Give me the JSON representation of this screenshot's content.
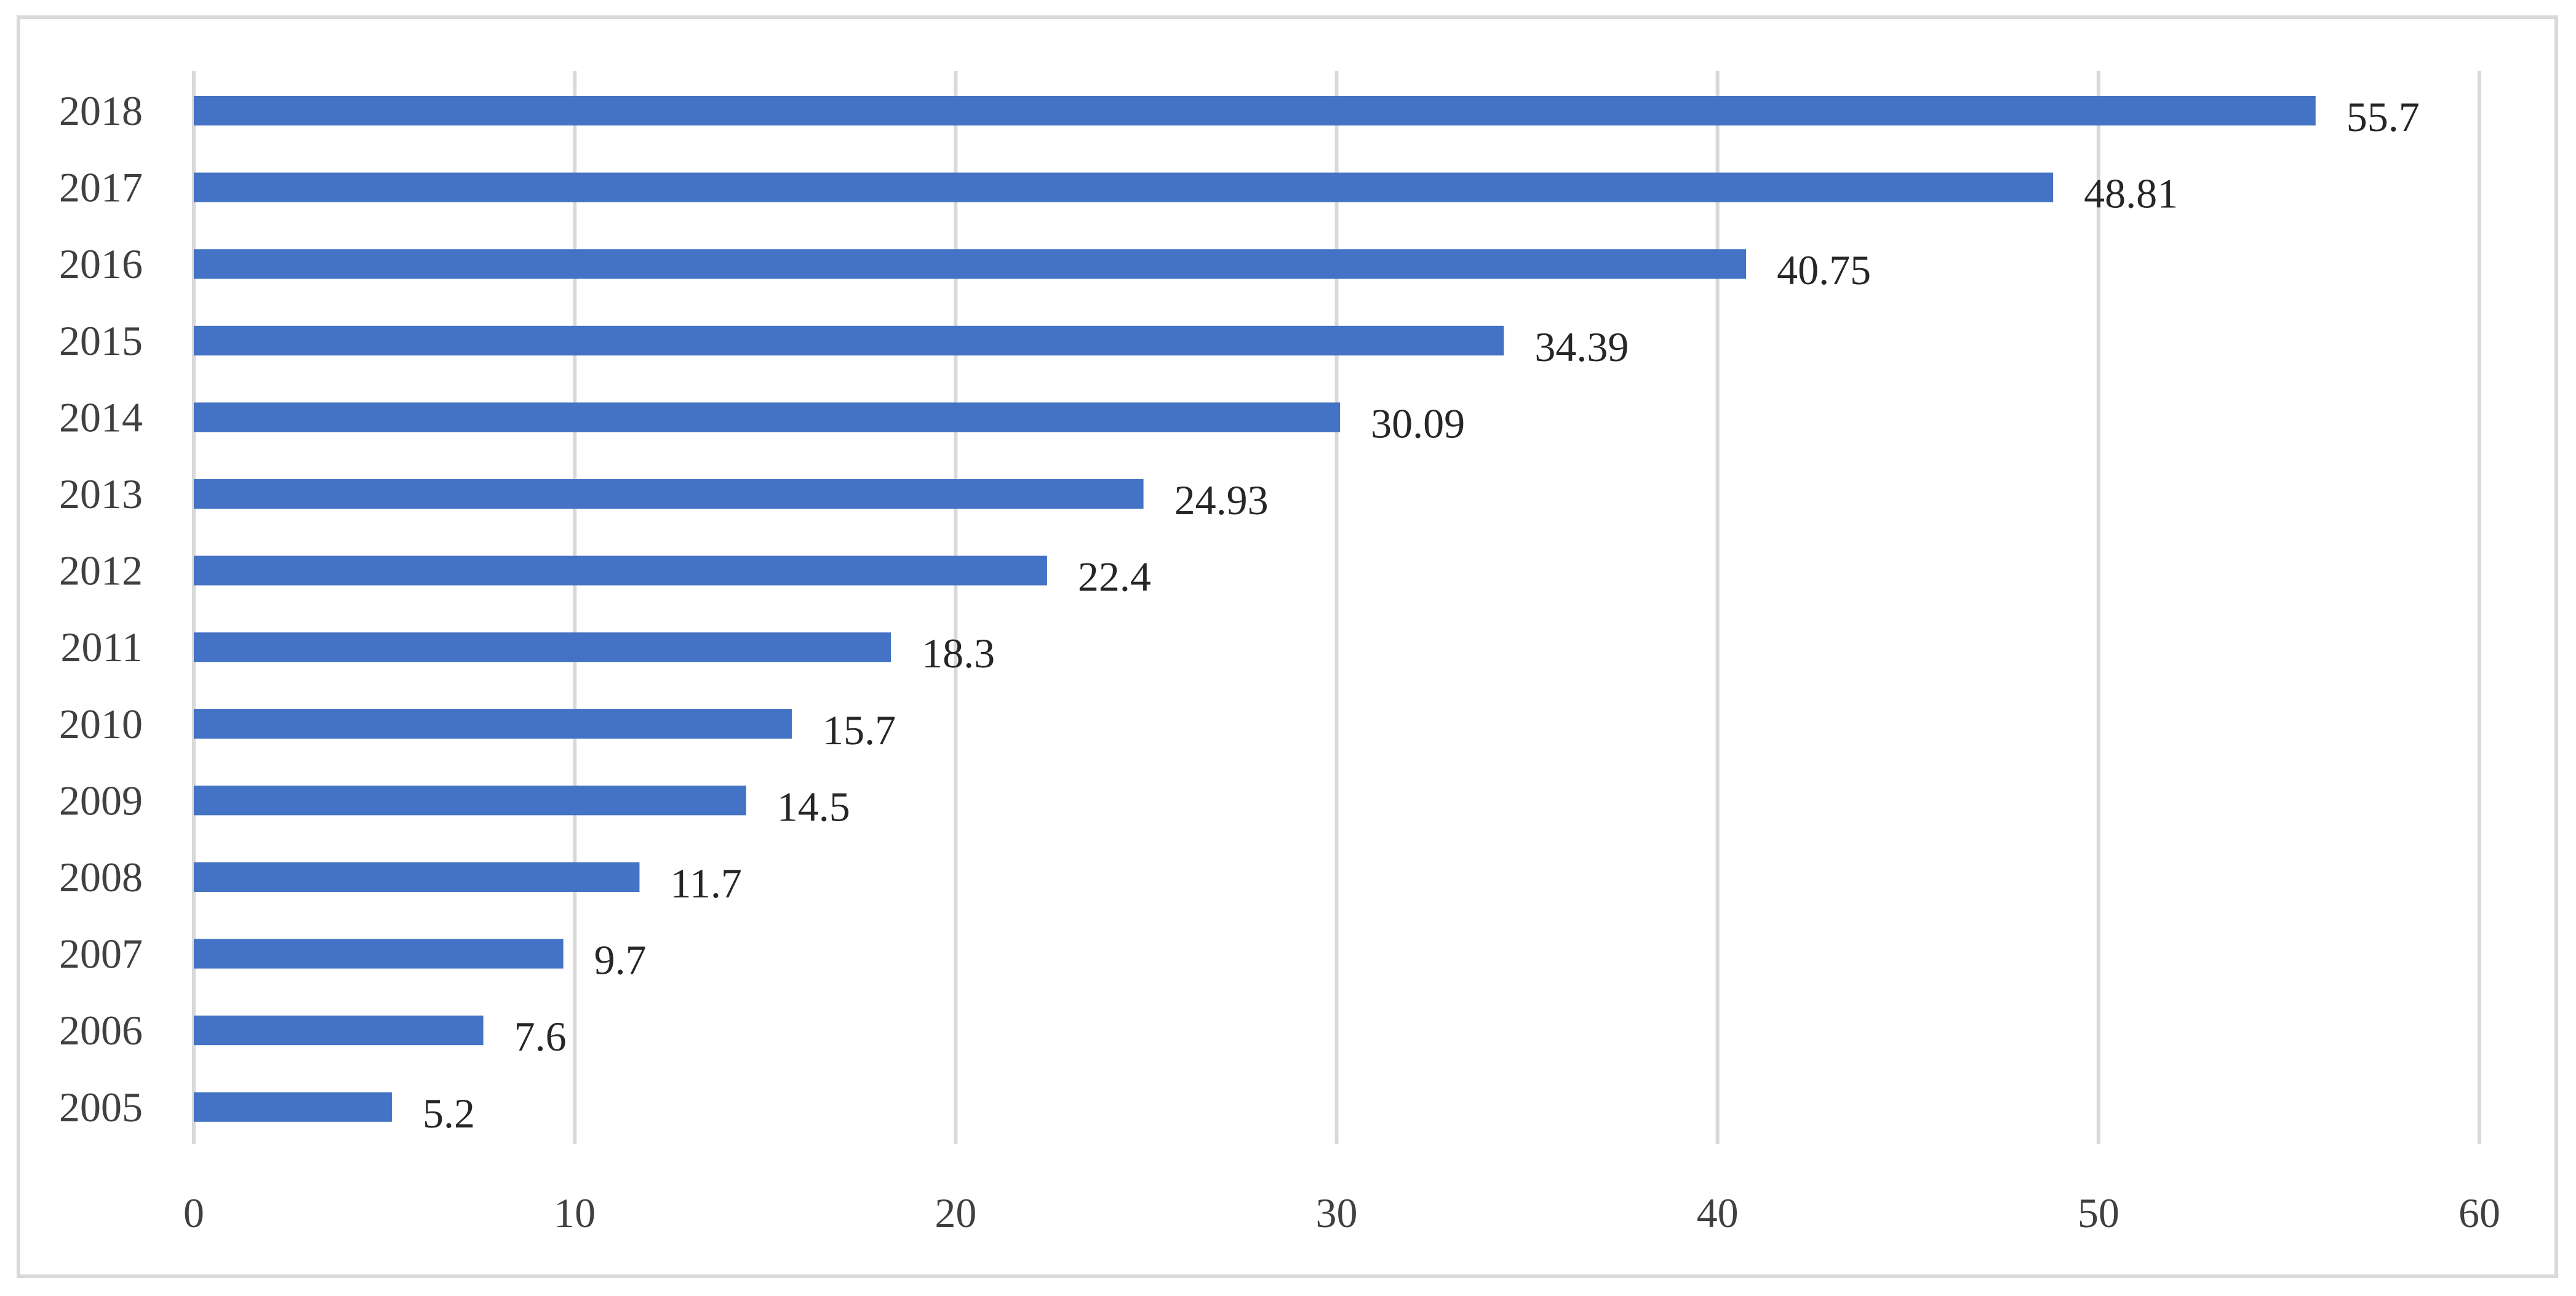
{
  "chart_data": {
    "type": "bar",
    "orientation": "horizontal",
    "title": "",
    "xlabel": "",
    "ylabel": "",
    "categories": [
      "2018",
      "2017",
      "2016",
      "2015",
      "2014",
      "2013",
      "2012",
      "2011",
      "2010",
      "2009",
      "2008",
      "2007",
      "2006",
      "2005"
    ],
    "values": [
      55.7,
      48.81,
      40.75,
      34.39,
      30.09,
      24.93,
      22.4,
      18.3,
      15.7,
      14.5,
      11.7,
      9.7,
      7.6,
      5.2
    ],
    "data_labels": [
      "55.7",
      "48.81",
      "40.75",
      "34.39",
      "30.09",
      "24.93",
      "22.4",
      "18.3",
      "15.7",
      "14.5",
      "11.7",
      "9.7",
      "7.6",
      "5.2"
    ],
    "xlim": [
      0,
      60
    ],
    "xticks": [
      "0",
      "10",
      "20",
      "30",
      "40",
      "50",
      "60"
    ],
    "grid": true,
    "legend": "none",
    "bar_color": "#4472C4",
    "grid_color": "#D9D9D9",
    "border_color": "#D9D9D9"
  }
}
